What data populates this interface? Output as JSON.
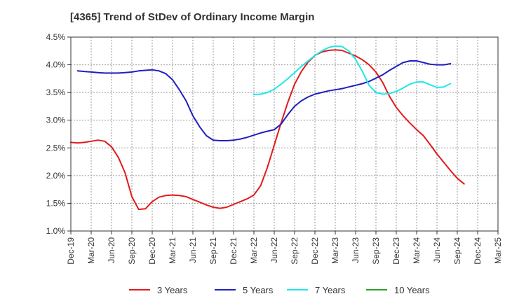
{
  "chart_data": {
    "type": "line",
    "title": "[4365]  Trend of StDev of Ordinary Income Margin",
    "xlabel": "",
    "ylabel": "",
    "x_ticks": [
      "Dec-19",
      "Mar-20",
      "Jun-20",
      "Sep-20",
      "Dec-20",
      "Mar-21",
      "Jun-21",
      "Sep-21",
      "Dec-21",
      "Mar-22",
      "Jun-22",
      "Sep-22",
      "Dec-22",
      "Mar-23",
      "Jun-23",
      "Sep-23",
      "Dec-23",
      "Mar-24",
      "Jun-24",
      "Sep-24",
      "Dec-24",
      "Mar-25"
    ],
    "y_ticks": [
      "1.0%",
      "1.5%",
      "2.0%",
      "2.5%",
      "3.0%",
      "3.5%",
      "4.0%",
      "4.5%"
    ],
    "ylim": [
      1.0,
      4.5
    ],
    "y_unit": "%",
    "grid": "horizontal dashed",
    "legend_position": "bottom",
    "series": [
      {
        "name": "3 Years",
        "color": "#e31a1c",
        "points": [
          [
            "Dec-19",
            2.6
          ],
          [
            "Jan-20",
            2.59
          ],
          [
            "Feb-20",
            2.6
          ],
          [
            "Mar-20",
            2.62
          ],
          [
            "Apr-20",
            2.64
          ],
          [
            "May-20",
            2.62
          ],
          [
            "Jun-20",
            2.52
          ],
          [
            "Jul-20",
            2.33
          ],
          [
            "Aug-20",
            2.05
          ],
          [
            "Sep-20",
            1.62
          ],
          [
            "Oct-20",
            1.39
          ],
          [
            "Nov-20",
            1.4
          ],
          [
            "Dec-20",
            1.53
          ],
          [
            "Jan-21",
            1.61
          ],
          [
            "Feb-21",
            1.64
          ],
          [
            "Mar-21",
            1.65
          ],
          [
            "Apr-21",
            1.64
          ],
          [
            "May-21",
            1.62
          ],
          [
            "Jun-21",
            1.57
          ],
          [
            "Jul-21",
            1.52
          ],
          [
            "Aug-21",
            1.47
          ],
          [
            "Sep-21",
            1.43
          ],
          [
            "Oct-21",
            1.41
          ],
          [
            "Nov-21",
            1.43
          ],
          [
            "Dec-21",
            1.48
          ],
          [
            "Jan-22",
            1.53
          ],
          [
            "Feb-22",
            1.58
          ],
          [
            "Mar-22",
            1.65
          ],
          [
            "Apr-22",
            1.82
          ],
          [
            "May-22",
            2.15
          ],
          [
            "Jun-22",
            2.55
          ],
          [
            "Jul-22",
            2.95
          ],
          [
            "Aug-22",
            3.32
          ],
          [
            "Sep-22",
            3.65
          ],
          [
            "Oct-22",
            3.88
          ],
          [
            "Nov-22",
            4.05
          ],
          [
            "Dec-22",
            4.17
          ],
          [
            "Jan-23",
            4.23
          ],
          [
            "Feb-23",
            4.26
          ],
          [
            "Mar-23",
            4.27
          ],
          [
            "Apr-23",
            4.26
          ],
          [
            "May-23",
            4.21
          ],
          [
            "Jun-23",
            4.16
          ],
          [
            "Jul-23",
            4.09
          ],
          [
            "Aug-23",
            4.0
          ],
          [
            "Sep-23",
            3.87
          ],
          [
            "Oct-23",
            3.68
          ],
          [
            "Nov-23",
            3.43
          ],
          [
            "Dec-23",
            3.23
          ],
          [
            "Jan-24",
            3.08
          ],
          [
            "Feb-24",
            2.95
          ],
          [
            "Mar-24",
            2.83
          ],
          [
            "Apr-24",
            2.72
          ],
          [
            "May-24",
            2.56
          ],
          [
            "Jun-24",
            2.39
          ],
          [
            "Jul-24",
            2.24
          ],
          [
            "Aug-24",
            2.09
          ],
          [
            "Sep-24",
            1.95
          ],
          [
            "Oct-24",
            1.85
          ]
        ]
      },
      {
        "name": "5 Years",
        "color": "#1f1fbf",
        "points": [
          [
            "Dec-19",
            null
          ],
          [
            "Jan-20",
            3.89
          ],
          [
            "Feb-20",
            3.88
          ],
          [
            "Mar-20",
            3.87
          ],
          [
            "Apr-20",
            3.86
          ],
          [
            "May-20",
            3.85
          ],
          [
            "Jun-20",
            3.85
          ],
          [
            "Jul-20",
            3.85
          ],
          [
            "Aug-20",
            3.86
          ],
          [
            "Sep-20",
            3.87
          ],
          [
            "Oct-20",
            3.89
          ],
          [
            "Nov-20",
            3.9
          ],
          [
            "Dec-20",
            3.91
          ],
          [
            "Jan-21",
            3.89
          ],
          [
            "Feb-21",
            3.84
          ],
          [
            "Mar-21",
            3.73
          ],
          [
            "Apr-21",
            3.55
          ],
          [
            "May-21",
            3.35
          ],
          [
            "Jun-21",
            3.08
          ],
          [
            "Jul-21",
            2.88
          ],
          [
            "Aug-21",
            2.72
          ],
          [
            "Sep-21",
            2.64
          ],
          [
            "Oct-21",
            2.63
          ],
          [
            "Nov-21",
            2.63
          ],
          [
            "Dec-21",
            2.64
          ],
          [
            "Jan-22",
            2.66
          ],
          [
            "Feb-22",
            2.69
          ],
          [
            "Mar-22",
            2.73
          ],
          [
            "Apr-22",
            2.77
          ],
          [
            "May-22",
            2.8
          ],
          [
            "Jun-22",
            2.83
          ],
          [
            "Jul-22",
            2.93
          ],
          [
            "Aug-22",
            3.1
          ],
          [
            "Sep-22",
            3.25
          ],
          [
            "Oct-22",
            3.35
          ],
          [
            "Nov-22",
            3.42
          ],
          [
            "Dec-22",
            3.47
          ],
          [
            "Jan-23",
            3.5
          ],
          [
            "Feb-23",
            3.53
          ],
          [
            "Mar-23",
            3.55
          ],
          [
            "Apr-23",
            3.57
          ],
          [
            "May-23",
            3.6
          ],
          [
            "Jun-23",
            3.63
          ],
          [
            "Jul-23",
            3.66
          ],
          [
            "Aug-23",
            3.7
          ],
          [
            "Sep-23",
            3.76
          ],
          [
            "Oct-23",
            3.82
          ],
          [
            "Nov-23",
            3.9
          ],
          [
            "Dec-23",
            3.97
          ],
          [
            "Jan-24",
            4.04
          ],
          [
            "Feb-24",
            4.07
          ],
          [
            "Mar-24",
            4.07
          ],
          [
            "Apr-24",
            4.04
          ],
          [
            "May-24",
            4.01
          ],
          [
            "Jun-24",
            4.0
          ],
          [
            "Jul-24",
            4.0
          ],
          [
            "Aug-24",
            4.02
          ]
        ]
      },
      {
        "name": "7 Years",
        "color": "#1ee8e8",
        "points": [
          [
            "Mar-22",
            3.46
          ],
          [
            "Apr-22",
            3.47
          ],
          [
            "May-22",
            3.5
          ],
          [
            "Jun-22",
            3.56
          ],
          [
            "Jul-22",
            3.65
          ],
          [
            "Aug-22",
            3.75
          ],
          [
            "Sep-22",
            3.86
          ],
          [
            "Oct-22",
            3.97
          ],
          [
            "Nov-22",
            4.07
          ],
          [
            "Dec-22",
            4.17
          ],
          [
            "Jan-23",
            4.25
          ],
          [
            "Feb-23",
            4.31
          ],
          [
            "Mar-23",
            4.34
          ],
          [
            "Apr-23",
            4.33
          ],
          [
            "May-23",
            4.25
          ],
          [
            "Jun-23",
            4.1
          ],
          [
            "Jul-23",
            3.88
          ],
          [
            "Aug-23",
            3.63
          ],
          [
            "Sep-23",
            3.5
          ],
          [
            "Oct-23",
            3.47
          ],
          [
            "Nov-23",
            3.48
          ],
          [
            "Dec-23",
            3.52
          ],
          [
            "Jan-24",
            3.58
          ],
          [
            "Feb-24",
            3.65
          ],
          [
            "Mar-24",
            3.69
          ],
          [
            "Apr-24",
            3.69
          ],
          [
            "May-24",
            3.64
          ],
          [
            "Jun-24",
            3.59
          ],
          [
            "Jul-24",
            3.6
          ],
          [
            "Aug-24",
            3.66
          ]
        ]
      },
      {
        "name": "10 Years",
        "color": "#2ca02c",
        "points": []
      }
    ]
  }
}
